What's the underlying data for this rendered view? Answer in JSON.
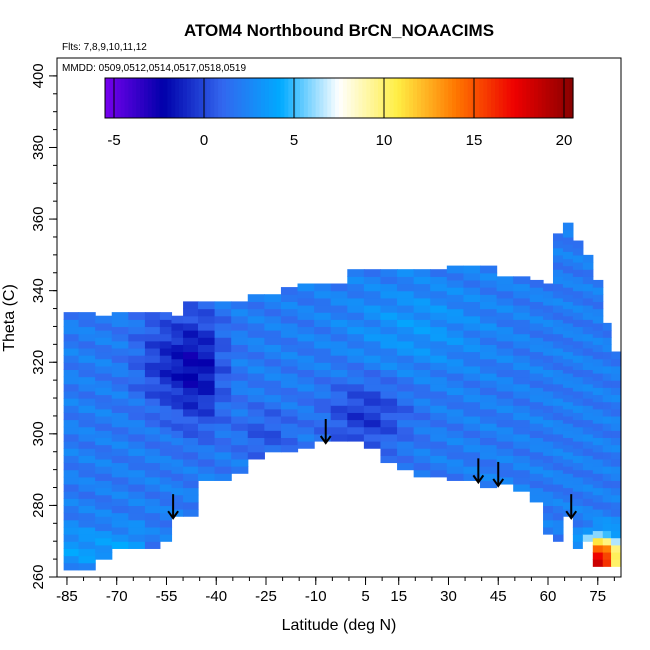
{
  "chart_data": {
    "type": "heatmap",
    "title": "ATOM4 Northbound BrCN_NOAACIMS",
    "flights_note": "Flts: 7,8,9,10,11,12",
    "dates_note": "MMDD: 0509,0512,0514,0517,0518,0519",
    "xlabel": "Latitude (deg N)",
    "ylabel": "Theta (C)",
    "xlim": [
      -88,
      82
    ],
    "ylim": [
      260,
      405
    ],
    "x_ticks": [
      -85,
      -70,
      -55,
      -40,
      -25,
      -10,
      5,
      15,
      30,
      45,
      60,
      75
    ],
    "y_ticks": [
      260,
      280,
      300,
      320,
      340,
      360,
      380,
      400
    ],
    "colorbar": {
      "range": [
        -5.5,
        20.5
      ],
      "ticks": [
        -5,
        0,
        5,
        10,
        15,
        20
      ],
      "colors": [
        "#7700ee",
        "#0000aa",
        "#3366ee",
        "#00aaff",
        "#ffffff",
        "#ffee44",
        "#ff7700",
        "#ee0000",
        "#880000"
      ]
    },
    "arrows_latitude": [
      -53,
      -7,
      39,
      45,
      67
    ],
    "data_envelope": [
      [
        -84,
        262,
        333
      ],
      [
        -79,
        262,
        333
      ],
      [
        -74,
        265,
        333
      ],
      [
        -69,
        268,
        333
      ],
      [
        -64,
        268,
        333
      ],
      [
        -59,
        268,
        333
      ],
      [
        -55,
        270,
        333
      ],
      [
        -52,
        277,
        333
      ],
      [
        -48,
        277,
        336
      ],
      [
        -43,
        287,
        336
      ],
      [
        -38,
        287,
        337
      ],
      [
        -33,
        289,
        337
      ],
      [
        -28,
        293,
        338
      ],
      [
        -23,
        295,
        338
      ],
      [
        -18,
        295,
        341
      ],
      [
        -13,
        296,
        341
      ],
      [
        -8,
        298,
        342
      ],
      [
        -3,
        298,
        342
      ],
      [
        2,
        298,
        346
      ],
      [
        7,
        296,
        346
      ],
      [
        12,
        292,
        346
      ],
      [
        17,
        290,
        346
      ],
      [
        22,
        288,
        346
      ],
      [
        27,
        288,
        346
      ],
      [
        32,
        287,
        347
      ],
      [
        37,
        287,
        347
      ],
      [
        42,
        285,
        347
      ],
      [
        47,
        286,
        344
      ],
      [
        52,
        284,
        344
      ],
      [
        57,
        281,
        342
      ],
      [
        60,
        272,
        342
      ],
      [
        63,
        270,
        356
      ],
      [
        66,
        277,
        358
      ],
      [
        69,
        268,
        354
      ],
      [
        72,
        268,
        350
      ],
      [
        75,
        263,
        342
      ],
      [
        78,
        263,
        330
      ],
      [
        80,
        263,
        322
      ]
    ],
    "value_field": "BrCN mixing ratio, mostly -1 to 4 (blue); minima near 0 to -3 (dark blue) at -60 to -40 and 0 to 15 deg N; maxima up to 20 (red) at 70-80 deg N below 270"
  }
}
